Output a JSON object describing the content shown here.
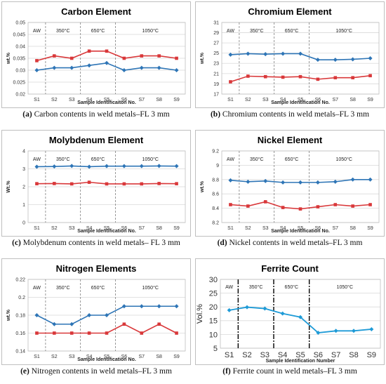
{
  "figures": [
    {
      "caption_label": "(a)",
      "caption_text": "Carbon contents in weld metals–FL 3 mm",
      "chart_data": {
        "type": "line",
        "title": "Carbon Element",
        "xlabel": "Sample Identificaiton No.",
        "ylabel": "wt.%",
        "categories": [
          "S1",
          "S2",
          "S3",
          "S4",
          "S5",
          "S6",
          "S7",
          "S8",
          "S9"
        ],
        "ylim": [
          0.02,
          0.05
        ],
        "yticks": [
          "0.02",
          "0.025",
          "0.03",
          "0.035",
          "0.04",
          "0.045",
          "0.05"
        ],
        "grid": true,
        "regions": [
          "AW",
          "350°C",
          "650°C",
          "1050°C"
        ],
        "series": [
          {
            "color": "#2e75b6",
            "marker": "diamond",
            "values": [
              0.03,
              0.031,
              0.031,
              0.032,
              0.033,
              0.03,
              0.031,
              0.031,
              0.03
            ]
          },
          {
            "color": "#d9383a",
            "marker": "square",
            "values": [
              0.034,
              0.036,
              0.035,
              0.038,
              0.038,
              0.035,
              0.036,
              0.036,
              0.035
            ]
          }
        ]
      }
    },
    {
      "caption_label": "(b)",
      "caption_text": "Chromium contents in weld metals–FL 3 mm",
      "chart_data": {
        "type": "line",
        "title": "Chromium Element",
        "xlabel": "Sample Identification No.",
        "ylabel": "wt.%",
        "categories": [
          "S1",
          "S2",
          "S3",
          "S4",
          "S5",
          "S6",
          "S7",
          "S8",
          "S9"
        ],
        "ylim": [
          17,
          31
        ],
        "yticks": [
          "17",
          "19",
          "21",
          "23",
          "25",
          "27",
          "29",
          "31"
        ],
        "grid": true,
        "regions": [
          "AW",
          "350°C",
          "650°C",
          "1050°C"
        ],
        "series": [
          {
            "color": "#2e75b6",
            "marker": "diamond",
            "values": [
              24.7,
              24.9,
              24.8,
              24.9,
              24.9,
              23.7,
              23.7,
              23.8,
              24.0
            ]
          },
          {
            "color": "#d9383a",
            "marker": "square",
            "values": [
              19.4,
              20.5,
              20.4,
              20.3,
              20.4,
              19.9,
              20.2,
              20.2,
              20.6
            ]
          }
        ]
      }
    },
    {
      "caption_label": "(c)",
      "caption_text": "Molybdenum contents in weld metals– FL 3 mm",
      "chart_data": {
        "type": "line",
        "title": "Molybdenum Element",
        "xlabel": "Sample Identification No.",
        "ylabel": "Wt.%",
        "categories": [
          "S1",
          "S2",
          "S3",
          "S4",
          "S5",
          "S6",
          "S7",
          "S8",
          "S9"
        ],
        "ylim": [
          0,
          4
        ],
        "yticks": [
          "0",
          "1",
          "2",
          "3",
          "4"
        ],
        "grid": true,
        "regions": [
          "AW",
          "350°C",
          "650°C",
          "1050°C"
        ],
        "series": [
          {
            "color": "#2e75b6",
            "marker": "diamond",
            "values": [
              3.12,
              3.13,
              3.16,
              3.12,
              3.15,
              3.15,
              3.15,
              3.16,
              3.15
            ]
          },
          {
            "color": "#d9383a",
            "marker": "square",
            "values": [
              2.17,
              2.18,
              2.16,
              2.25,
              2.16,
              2.16,
              2.16,
              2.18,
              2.17
            ]
          }
        ]
      }
    },
    {
      "caption_label": "(d)",
      "caption_text": "Nickel contents in weld metals–FL 3 mm",
      "chart_data": {
        "type": "line",
        "title": "Nickel Element",
        "xlabel": "Sample Identification No.",
        "ylabel": "wt.%",
        "categories": [
          "S1",
          "S2",
          "S3",
          "S4",
          "S5",
          "S6",
          "S7",
          "S8",
          "S9"
        ],
        "ylim": [
          8.2,
          9.2
        ],
        "yticks": [
          "8.2",
          "8.4",
          "8.6",
          "8.8",
          "9",
          "9.2"
        ],
        "grid": true,
        "regions": [
          "AW",
          "350°C",
          "650°C",
          "1050°C"
        ],
        "series": [
          {
            "color": "#2e75b6",
            "marker": "diamond",
            "values": [
              8.79,
              8.77,
              8.78,
              8.76,
              8.76,
              8.76,
              8.77,
              8.8,
              8.8
            ]
          },
          {
            "color": "#d9383a",
            "marker": "square",
            "values": [
              8.45,
              8.43,
              8.49,
              8.41,
              8.39,
              8.42,
              8.45,
              8.43,
              8.45
            ]
          }
        ]
      }
    },
    {
      "caption_label": "(e)",
      "caption_text": "Nitrogen contents in weld metals–FL 3 mm",
      "chart_data": {
        "type": "line",
        "title": "Nitrogen Elements",
        "xlabel": "Sample Identification No.",
        "ylabel": "wt.%",
        "categories": [
          "S1",
          "S2",
          "S3",
          "S4",
          "S5",
          "S6",
          "S7",
          "S8",
          "S9"
        ],
        "ylim": [
          0.14,
          0.22
        ],
        "yticks": [
          "0.14",
          "0.16",
          "0.18",
          "0.2",
          "0.22"
        ],
        "grid": true,
        "regions": [
          "AW",
          "350°C",
          "650°C",
          "1050°C"
        ],
        "series": [
          {
            "color": "#2e75b6",
            "marker": "diamond",
            "values": [
              0.18,
              0.17,
              0.17,
              0.18,
              0.18,
              0.19,
              0.19,
              0.19,
              0.19
            ]
          },
          {
            "color": "#d9383a",
            "marker": "square",
            "values": [
              0.16,
              0.16,
              0.16,
              0.16,
              0.16,
              0.17,
              0.16,
              0.17,
              0.16
            ]
          }
        ]
      }
    },
    {
      "caption_label": "(f)",
      "caption_text": "Ferrite count in weld metals–FL 3 mm",
      "chart_data": {
        "type": "line",
        "title": "Ferrite Count",
        "xlabel": "Sample Identification Number",
        "ylabel": "Vol.%",
        "categories": [
          "S1",
          "S2",
          "S3",
          "S4",
          "S5",
          "S6",
          "S7",
          "S8",
          "S9"
        ],
        "ylim": [
          5,
          30
        ],
        "yticks": [
          "5",
          "10",
          "15",
          "20",
          "25",
          "30"
        ],
        "grid": true,
        "regions": [
          "AW",
          "350°C",
          "650°C",
          "1050°C"
        ],
        "series": [
          {
            "color": "#1f9bd7",
            "marker": "diamond",
            "values": [
              18.8,
              19.9,
              19.4,
              17.6,
              16.3,
              10.6,
              11.3,
              11.3,
              11.9
            ]
          }
        ]
      }
    }
  ]
}
